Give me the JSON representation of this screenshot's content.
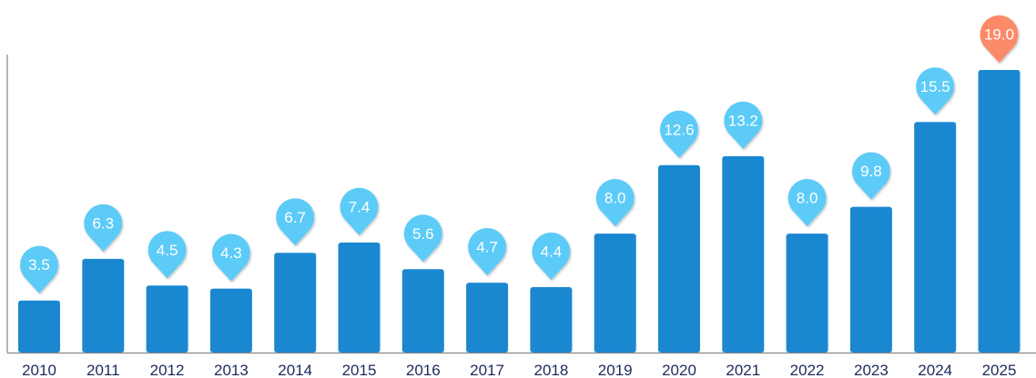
{
  "chart_data": {
    "type": "bar",
    "categories": [
      "2010",
      "2011",
      "2012",
      "2013",
      "2014",
      "2015",
      "2016",
      "2017",
      "2018",
      "2019",
      "2020",
      "2021",
      "2022",
      "2023",
      "2024",
      "2025"
    ],
    "values": [
      3.5,
      6.3,
      4.5,
      4.3,
      6.7,
      7.4,
      5.6,
      4.7,
      4.4,
      8.0,
      12.6,
      13.2,
      8.0,
      9.8,
      15.5,
      19.0
    ],
    "labels": [
      "3.5",
      "6.3",
      "4.5",
      "4.3",
      "6.7",
      "7.4",
      "5.6",
      "4.7",
      "4.4",
      "8.0",
      "12.6",
      "13.2",
      "8.0",
      "9.8",
      "15.5",
      "19.0"
    ],
    "highlight_index": 15,
    "ylim": [
      0,
      19.0
    ],
    "grid": false,
    "colors": {
      "bar": "#1a88d1",
      "bubble": "#5ccbf8",
      "highlight_bubble": "#fb8a68",
      "axis": "#888888",
      "tick_text": "#1f2a5a"
    }
  }
}
